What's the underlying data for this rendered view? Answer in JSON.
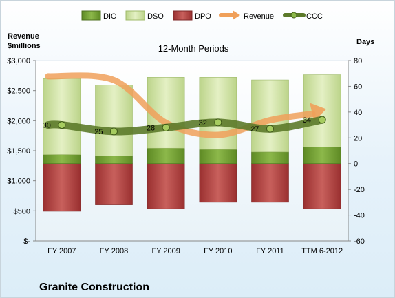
{
  "chart_data": {
    "type": "bar",
    "title": "12-Month Periods",
    "company": "Granite Construction",
    "y_left_label_line1": "Revenue",
    "y_left_label_line2": "$millions",
    "y_right_label": "Days",
    "y_left_range": [
      0,
      3000
    ],
    "y_right_range": [
      -60,
      80
    ],
    "y_left_ticks": [
      "$-",
      "$500",
      "$1,000",
      "$1,500",
      "$2,000",
      "$2,500",
      "$3,000"
    ],
    "y_right_ticks": [
      "-60",
      "-40",
      "-20",
      "0",
      "20",
      "40",
      "60",
      "80"
    ],
    "categories": [
      "FY 2007",
      "FY 2008",
      "FY 2009",
      "FY 2010",
      "FY 2011",
      "TTM 6-2012"
    ],
    "legend": [
      "DIO",
      "DSO",
      "DPO",
      "Revenue",
      "CCC"
    ],
    "legend_placement": "top",
    "series": [
      {
        "name": "DIO",
        "axis": "right",
        "values": [
          7,
          6,
          12,
          11,
          9,
          13
        ]
      },
      {
        "name": "DSO",
        "axis": "right",
        "values": [
          59,
          55,
          55,
          56,
          56,
          56
        ]
      },
      {
        "name": "DPO",
        "axis": "right",
        "values": [
          -37,
          -32,
          -35,
          -30,
          -30,
          -35
        ]
      },
      {
        "name": "Revenue",
        "axis": "left",
        "values": [
          2738,
          2674,
          1964,
          1763,
          2010,
          2170
        ]
      },
      {
        "name": "CCC",
        "axis": "right",
        "values": [
          30,
          25,
          28,
          32,
          27,
          34
        ]
      }
    ],
    "ccc_labels": [
      "30",
      "25",
      "28",
      "32",
      "27",
      "34"
    ],
    "colors": {
      "DIO": "#7aa23a",
      "DSO": "#d7e8b0",
      "DPO": "#b94a48",
      "Revenue": "#f0a05a",
      "CCC": "#5c7a2a"
    }
  }
}
